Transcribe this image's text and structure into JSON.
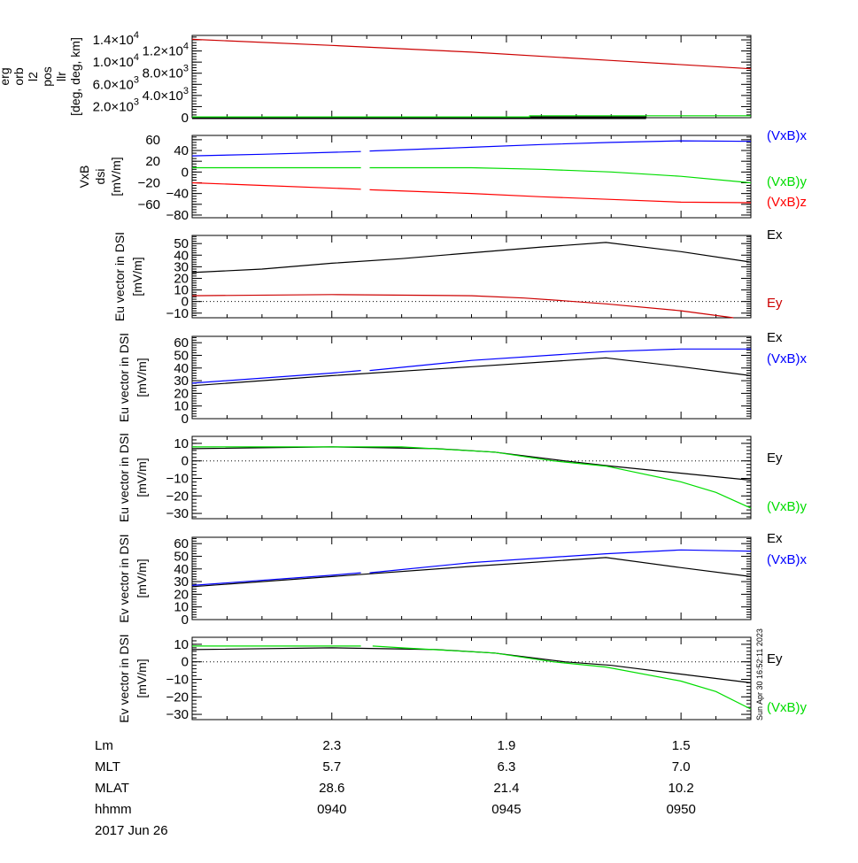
{
  "chart_data": {
    "type": "line",
    "xlim": [
      "09:36:00",
      "09:52:00"
    ],
    "x_major_ticks": [
      "09:40",
      "09:45",
      "09:50"
    ],
    "x_minor_step_minutes": 1,
    "timestamp": "Sun Apr 30 16:52:11 2023",
    "date_label": "2017 Jun 26",
    "annotation_rows": [
      {
        "label": "Lm",
        "values": [
          "2.3",
          "1.9",
          "1.5"
        ]
      },
      {
        "label": "MLT",
        "values": [
          "5.7",
          "6.3",
          "7.0"
        ]
      },
      {
        "label": "MLAT",
        "values": [
          "28.6",
          "21.4",
          "10.2"
        ]
      },
      {
        "label": "hhmm",
        "values": [
          "0940",
          "0945",
          "0950"
        ]
      }
    ],
    "panels": [
      {
        "ylabel": [
          "erg",
          "orb",
          "l2",
          "pos",
          "llr",
          "[deg, deg, km]"
        ],
        "ylim": [
          0,
          14800
        ],
        "minor_step": 500,
        "yticks": [
          {
            "value": 0,
            "label": "0"
          },
          {
            "value": 2000,
            "label": "2.0×10",
            "exp": "3"
          },
          {
            "value": 4000,
            "label": "4.0×10",
            "exp": "3"
          },
          {
            "value": 6000,
            "label": "6.0×10",
            "exp": "3"
          },
          {
            "value": 8000,
            "label": "8.0×10",
            "exp": "3"
          },
          {
            "value": 10000,
            "label": "1.0×10",
            "exp": "4"
          },
          {
            "value": 12000,
            "label": "1.2×10",
            "exp": "4"
          },
          {
            "value": 14000,
            "label": "1.4×10",
            "exp": "4"
          }
        ],
        "zero_line": false,
        "series": [
          {
            "color": "#000000",
            "width": 3,
            "points": [
              [
                "09:36:00",
                0
              ],
              [
                "09:49:00",
                0
              ]
            ]
          },
          {
            "color": "#00dd00",
            "points": [
              [
                "09:36:00",
                150
              ],
              [
                "09:45:40",
                150
              ],
              [
                "09:45:40",
                350
              ],
              [
                "09:52:00",
                350
              ]
            ]
          },
          {
            "color": "#cc0000",
            "points": [
              [
                "09:36:00",
                14100
              ],
              [
                "09:40:00",
                13000
              ],
              [
                "09:44:00",
                11800
              ],
              [
                "09:48:00",
                10300
              ],
              [
                "09:52:00",
                8800
              ]
            ]
          }
        ]
      },
      {
        "ylabel": [
          "VxB",
          "dsi",
          "[mV/m]"
        ],
        "ylim": [
          -85,
          68
        ],
        "minor_step": 5,
        "yticks": [
          {
            "value": -80,
            "label": "−80"
          },
          {
            "value": -60,
            "label": "−60"
          },
          {
            "value": -40,
            "label": "−40"
          },
          {
            "value": -20,
            "label": "−20"
          },
          {
            "value": 0,
            "label": "0"
          },
          {
            "value": 20,
            "label": "20"
          },
          {
            "value": 40,
            "label": "40"
          },
          {
            "value": 60,
            "label": "60"
          }
        ],
        "zero_line": false,
        "series": [
          {
            "name": "(VxB)x",
            "color": "#0000ff",
            "points": [
              [
                "09:36:00",
                30
              ],
              [
                "09:38:00",
                33
              ],
              [
                "09:40:50",
                38
              ],
              null,
              [
                "09:41:05",
                39
              ],
              [
                "09:44:00",
                46
              ],
              [
                "09:46:00",
                51
              ],
              [
                "09:48:00",
                55
              ],
              [
                "09:50:00",
                58
              ],
              [
                "09:52:00",
                57
              ]
            ]
          },
          {
            "name": "(VxB)y",
            "color": "#00dd00",
            "points": [
              [
                "09:36:00",
                8
              ],
              [
                "09:40:50",
                8
              ],
              null,
              [
                "09:41:05",
                8
              ],
              [
                "09:44:00",
                8
              ],
              [
                "09:46:00",
                5
              ],
              [
                "09:48:00",
                0
              ],
              [
                "09:50:00",
                -8
              ],
              [
                "09:52:00",
                -20
              ]
            ]
          },
          {
            "name": "(VxB)z",
            "color": "#ff0000",
            "points": [
              [
                "09:36:00",
                -20
              ],
              [
                "09:38:00",
                -25
              ],
              [
                "09:40:50",
                -32
              ],
              null,
              [
                "09:41:05",
                -33
              ],
              [
                "09:44:00",
                -40
              ],
              [
                "09:46:00",
                -46
              ],
              [
                "09:48:00",
                -51
              ],
              [
                "09:50:00",
                -56
              ],
              [
                "09:52:00",
                -57
              ]
            ]
          }
        ]
      },
      {
        "ylabel": [
          "Eu vector in DSI",
          "[mV/m]"
        ],
        "ylim": [
          -14,
          57
        ],
        "minor_step": 2,
        "yticks": [
          {
            "value": -10,
            "label": "−10"
          },
          {
            "value": 0,
            "label": "0"
          },
          {
            "value": 10,
            "label": "10"
          },
          {
            "value": 20,
            "label": "20"
          },
          {
            "value": 30,
            "label": "30"
          },
          {
            "value": 40,
            "label": "40"
          },
          {
            "value": 50,
            "label": "50"
          }
        ],
        "zero_line": true,
        "series": [
          {
            "name": "Ex",
            "color": "#000000",
            "points": [
              [
                "09:36:00",
                25
              ],
              [
                "09:38:00",
                28
              ],
              [
                "09:40:00",
                33
              ],
              [
                "09:42:00",
                37
              ],
              [
                "09:44:00",
                42
              ],
              [
                "09:46:00",
                47
              ],
              [
                "09:47:51",
                51
              ],
              [
                "09:50:00",
                43
              ],
              [
                "09:52:00",
                34
              ]
            ]
          },
          {
            "name": "Ey",
            "color": "#cc0000",
            "points": [
              [
                "09:36:00",
                5
              ],
              [
                "09:40:00",
                6
              ],
              [
                "09:44:00",
                5
              ],
              [
                "09:45:30",
                3
              ],
              [
                "09:46:30",
                1
              ],
              [
                "09:47:51",
                -2
              ],
              [
                "09:50:00",
                -8
              ],
              [
                "09:51:30",
                -14
              ]
            ]
          }
        ]
      },
      {
        "ylabel": [
          "Eu vector in DSI",
          "[mV/m]"
        ],
        "ylim": [
          0,
          65
        ],
        "minor_step": 2,
        "yticks": [
          {
            "value": 0,
            "label": "0"
          },
          {
            "value": 10,
            "label": "10"
          },
          {
            "value": 20,
            "label": "20"
          },
          {
            "value": 30,
            "label": "30"
          },
          {
            "value": 40,
            "label": "40"
          },
          {
            "value": 50,
            "label": "50"
          },
          {
            "value": 60,
            "label": "60"
          }
        ],
        "zero_line": false,
        "series": [
          {
            "name": "Ex",
            "color": "#000000",
            "points": [
              [
                "09:36:00",
                26
              ],
              [
                "09:40:00",
                34
              ],
              [
                "09:44:00",
                41
              ],
              [
                "09:47:51",
                48
              ],
              [
                "09:50:00",
                41
              ],
              [
                "09:52:00",
                34
              ]
            ]
          },
          {
            "name": "(VxB)x",
            "color": "#0000ff",
            "points": [
              [
                "09:36:00",
                28
              ],
              [
                "09:40:00",
                36
              ],
              [
                "09:40:50",
                38
              ],
              null,
              [
                "09:41:05",
                38
              ],
              [
                "09:44:00",
                46
              ],
              [
                "09:47:51",
                53
              ],
              [
                "09:50:00",
                55
              ],
              [
                "09:52:00",
                55
              ]
            ]
          }
        ]
      },
      {
        "ylabel": [
          "Eu vector in DSI",
          "[mV/m]"
        ],
        "ylim": [
          -33,
          14
        ],
        "minor_step": 2,
        "yticks": [
          {
            "value": -30,
            "label": "−30"
          },
          {
            "value": -20,
            "label": "−20"
          },
          {
            "value": -10,
            "label": "−10"
          },
          {
            "value": 0,
            "label": "0"
          },
          {
            "value": 10,
            "label": "10"
          }
        ],
        "zero_line": true,
        "series": [
          {
            "name": "Ey",
            "color": "#000000",
            "points": [
              [
                "09:36:00",
                7
              ],
              [
                "09:40:00",
                8
              ],
              [
                "09:43:00",
                7
              ],
              [
                "09:44:40",
                5
              ],
              [
                "09:46:40",
                0
              ],
              [
                "09:48:00",
                -3
              ],
              [
                "09:50:00",
                -7
              ],
              [
                "09:52:00",
                -11
              ]
            ]
          },
          {
            "name": "(VxB)y",
            "color": "#00dd00",
            "points": [
              [
                "09:36:00",
                8
              ],
              [
                "09:42:00",
                8
              ],
              [
                "09:44:40",
                5
              ],
              [
                "09:46:20",
                0
              ],
              [
                "09:47:51",
                -3
              ],
              [
                "09:50:00",
                -12
              ],
              [
                "09:51:00",
                -18
              ],
              [
                "09:52:00",
                -27
              ]
            ]
          }
        ]
      },
      {
        "ylabel": [
          "Ev vector in DSI",
          "[mV/m]"
        ],
        "ylim": [
          0,
          65
        ],
        "minor_step": 2,
        "yticks": [
          {
            "value": 0,
            "label": "0"
          },
          {
            "value": 10,
            "label": "10"
          },
          {
            "value": 20,
            "label": "20"
          },
          {
            "value": 30,
            "label": "30"
          },
          {
            "value": 40,
            "label": "40"
          },
          {
            "value": 50,
            "label": "50"
          },
          {
            "value": 60,
            "label": "60"
          }
        ],
        "zero_line": false,
        "series": [
          {
            "name": "Ex",
            "color": "#000000",
            "points": [
              [
                "09:36:00",
                26
              ],
              [
                "09:40:00",
                34
              ],
              [
                "09:44:00",
                42
              ],
              [
                "09:47:51",
                49
              ],
              [
                "09:50:00",
                41
              ],
              [
                "09:52:00",
                34
              ]
            ]
          },
          {
            "name": "(VxB)x",
            "color": "#0000ff",
            "points": [
              [
                "09:36:00",
                27
              ],
              [
                "09:40:00",
                35
              ],
              [
                "09:40:50",
                37
              ],
              null,
              [
                "09:41:05",
                37
              ],
              [
                "09:44:00",
                45
              ],
              [
                "09:47:51",
                52
              ],
              [
                "09:50:00",
                55
              ],
              [
                "09:52:00",
                54
              ]
            ]
          }
        ]
      },
      {
        "ylabel": [
          "Ev vector in DSI",
          "[mV/m]"
        ],
        "ylim": [
          -33,
          14
        ],
        "minor_step": 2,
        "yticks": [
          {
            "value": -30,
            "label": "−30"
          },
          {
            "value": -20,
            "label": "−20"
          },
          {
            "value": -10,
            "label": "−10"
          },
          {
            "value": 0,
            "label": "0"
          },
          {
            "value": 10,
            "label": "10"
          }
        ],
        "zero_line": true,
        "series": [
          {
            "name": "Ey",
            "color": "#000000",
            "points": [
              [
                "09:36:00",
                7
              ],
              [
                "09:40:00",
                8
              ],
              [
                "09:43:00",
                7
              ],
              [
                "09:44:40",
                5
              ],
              [
                "09:46:40",
                0
              ],
              [
                "09:48:00",
                -2
              ],
              [
                "09:50:00",
                -7
              ],
              [
                "09:52:00",
                -12
              ]
            ]
          },
          {
            "name": "(VxB)y",
            "color": "#00dd00",
            "points": [
              [
                "09:36:00",
                9
              ],
              [
                "09:40:50",
                9
              ],
              null,
              [
                "09:41:10",
                9
              ],
              [
                "09:42:00",
                8
              ],
              [
                "09:44:40",
                5
              ],
              [
                "09:46:20",
                0
              ],
              [
                "09:47:51",
                -3
              ],
              [
                "09:50:00",
                -11
              ],
              [
                "09:51:00",
                -17
              ],
              [
                "09:52:00",
                -27
              ]
            ]
          }
        ]
      }
    ]
  }
}
